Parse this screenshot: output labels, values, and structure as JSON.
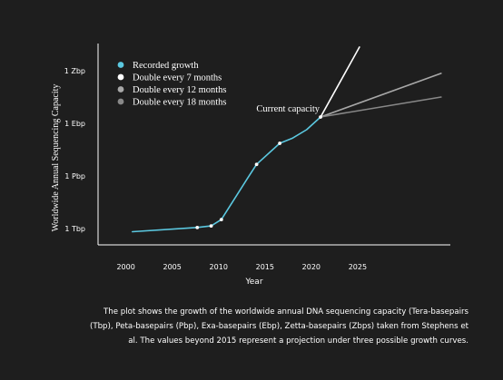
{
  "chart_data": {
    "type": "line",
    "title": "",
    "xlabel": "Year",
    "ylabel": "Worldwide Annual Sequencing Capacity",
    "xlim": [
      1997,
      2035
    ],
    "ylim": [
      -0.5,
      3.4
    ],
    "x_ticks": [
      2000,
      2005,
      2010,
      2015,
      2020,
      2025
    ],
    "y_ticks": [
      {
        "label": "1 Tbp",
        "value": 0
      },
      {
        "label": "1 Pbp",
        "value": 1
      },
      {
        "label": "1 Ebp",
        "value": 2
      },
      {
        "label": "1 Zbp",
        "value": 3
      }
    ],
    "legend": {
      "placement": "top-left"
    },
    "series": [
      {
        "name": "Recorded growth",
        "color": "#5bc8e0",
        "x": [
          2000.7,
          2007.7,
          2009.2,
          2010.3,
          2013.1,
          2014.1,
          2016.6,
          2018.0,
          2019.5,
          2021.0
        ],
        "y": [
          -0.06,
          0.02,
          0.05,
          0.17,
          0.95,
          1.22,
          1.62,
          1.72,
          1.88,
          2.12
        ],
        "markers": [
          {
            "x": 2007.7,
            "y": 0.02
          },
          {
            "x": 2009.2,
            "y": 0.05
          },
          {
            "x": 2010.3,
            "y": 0.17
          },
          {
            "x": 2014.1,
            "y": 1.22
          },
          {
            "x": 2016.6,
            "y": 1.62
          },
          {
            "x": 2021.0,
            "y": 2.12
          }
        ]
      },
      {
        "name": "Double every 7 months",
        "color": "#ffffff",
        "x": [
          2021.0,
          2025.2
        ],
        "y": [
          2.12,
          3.45
        ]
      },
      {
        "name": "Double every 12 months",
        "color": "#a8a8a8",
        "x": [
          2021.0,
          2034.0
        ],
        "y": [
          2.12,
          2.95
        ]
      },
      {
        "name": "Double every 18 months",
        "color": "#888888",
        "x": [
          2021.0,
          2034.0
        ],
        "y": [
          2.12,
          2.5
        ]
      }
    ],
    "annotations": [
      {
        "text": "Current capacity",
        "x": 2021.0,
        "y": 2.12
      }
    ]
  },
  "caption": "The plot shows the growth of the worldwide annual DNA sequencing capacity (Tera-basepairs (Tbp), Peta-basepairs (Pbp), Exa-basepairs (Ebp), Zetta-basepairs (Zbps) taken from Stephens et al. The values beyond 2015 represent a projection under three possible growth curves."
}
